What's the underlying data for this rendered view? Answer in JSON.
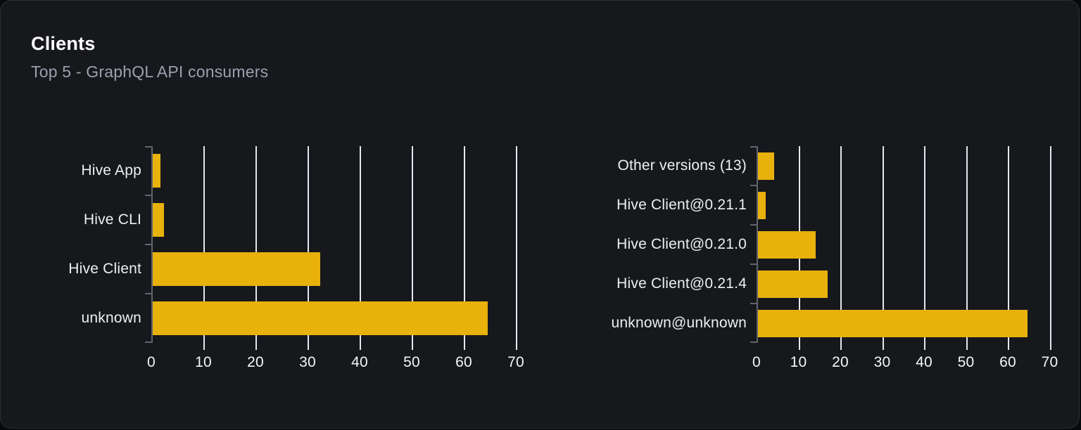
{
  "card": {
    "title": "Clients",
    "subtitle": "Top 5 - GraphQL API consumers"
  },
  "colors": {
    "bar": "#e8b10b",
    "grid_line": "#e3e7ef",
    "axis_line": "#60646c",
    "card_background": "#16181c",
    "card_border": "#2c2f35",
    "title_text": "#fcfcfd",
    "subtitle_text": "#9aa1ac",
    "category_label_text": "#edeff2",
    "tick_label_text": "#f5f6f8"
  },
  "chart_data": [
    {
      "type": "bar",
      "orientation": "horizontal",
      "name": "clients-by-name",
      "categories": [
        "Hive App",
        "Hive CLI",
        "Hive Client",
        "unknown"
      ],
      "values": [
        1.5,
        2.1,
        32.1,
        64.3
      ],
      "xlim": [
        0,
        70
      ],
      "x_ticks": [
        0,
        10,
        20,
        30,
        40,
        50,
        60,
        70
      ],
      "grid": true,
      "legend": "none",
      "bar_color": "#e8b10b"
    },
    {
      "type": "bar",
      "orientation": "horizontal",
      "name": "clients-by-version",
      "categories": [
        "Other versions (13)",
        "Hive Client@0.21.1",
        "Hive Client@0.21.0",
        "Hive Client@0.21.4",
        "unknown@unknown"
      ],
      "values": [
        3.9,
        1.8,
        13.7,
        16.6,
        64.4
      ],
      "xlim": [
        0,
        70
      ],
      "x_ticks": [
        0,
        10,
        20,
        30,
        40,
        50,
        60,
        70
      ],
      "grid": true,
      "legend": "none",
      "bar_color": "#e8b10b"
    }
  ]
}
